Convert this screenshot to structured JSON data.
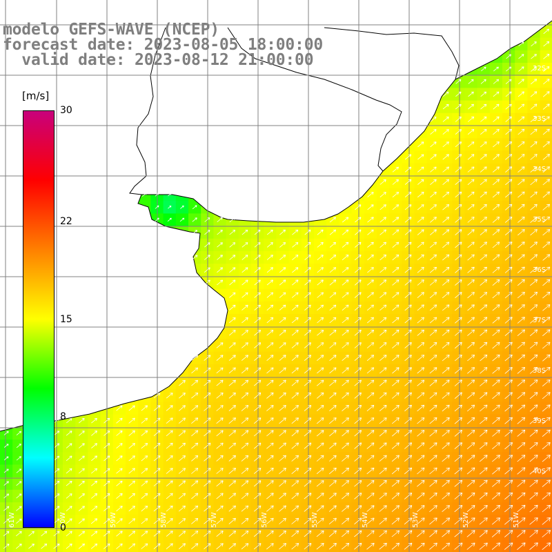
{
  "header": {
    "model_line": "modelo GEFS-WAVE (NCEP)",
    "forecast_line": "forecast date: 2023-08-05 18:00:00",
    "valid_line": "  valid date: 2023-08-12 21:00:00"
  },
  "colorbar": {
    "unit": "[m/s]",
    "range": [
      0,
      30
    ],
    "ticks": [
      {
        "value": 30,
        "label": "30"
      },
      {
        "value": 22,
        "label": "22"
      },
      {
        "value": 15,
        "label": "15"
      },
      {
        "value": 8,
        "label": "8"
      },
      {
        "value": 0,
        "label": "0"
      }
    ],
    "gradient_stops": [
      "#0000ff",
      "#00ffff",
      "#00ff00",
      "#ffff00",
      "#ff8000",
      "#ff0000",
      "#c8007c"
    ]
  },
  "map": {
    "lat_labels": [
      "32S",
      "33S",
      "34S",
      "35S",
      "36S",
      "37S",
      "38S",
      "39S",
      "40S"
    ],
    "lon_labels": [
      "61W",
      "60W",
      "59W",
      "58W",
      "57W",
      "56W",
      "55W",
      "54W",
      "53W",
      "52W",
      "51W"
    ],
    "grid_color": "#808080",
    "land_color": "#ffffff",
    "coast_color": "#000000",
    "arrow_color": "#ffffff",
    "field_description": "wind speed color field with wind direction arrows"
  }
}
